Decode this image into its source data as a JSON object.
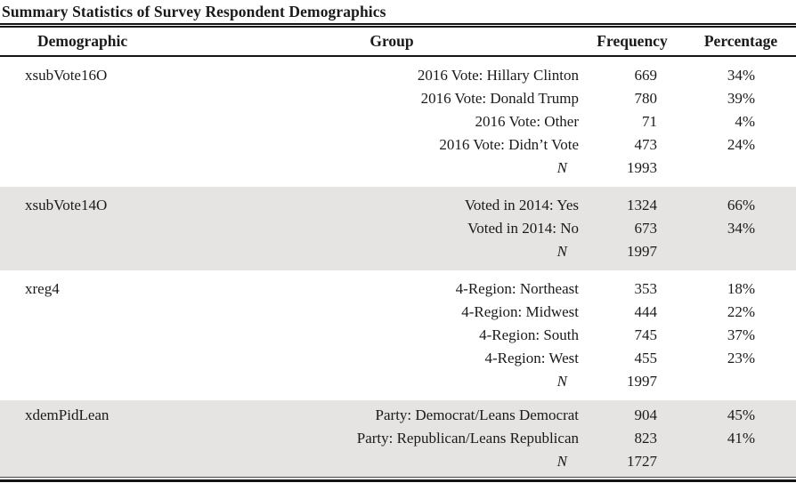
{
  "title": "Summary Statistics of Survey Respondent Demographics",
  "table": {
    "headers": {
      "demographic": "Demographic",
      "group": "Group",
      "frequency": "Frequency",
      "percentage": "Percentage"
    },
    "colors": {
      "shaded_row_background": "#e5e4e2",
      "rule_color": "#141414"
    },
    "sections": [
      {
        "demographic": "xsubVote16O",
        "shaded": false,
        "rows": [
          {
            "group": "2016 Vote: Hillary Clinton",
            "frequency": "669",
            "percentage": "34%"
          },
          {
            "group": "2016 Vote: Donald Trump",
            "frequency": "780",
            "percentage": "39%"
          },
          {
            "group": "2016 Vote: Other",
            "frequency": "71",
            "percentage": "4%"
          },
          {
            "group": "2016 Vote: Didn’t Vote",
            "frequency": "473",
            "percentage": "24%"
          },
          {
            "group": "N",
            "frequency": "1993",
            "percentage": ""
          }
        ]
      },
      {
        "demographic": "xsubVote14O",
        "shaded": true,
        "rows": [
          {
            "group": "Voted in 2014: Yes",
            "frequency": "1324",
            "percentage": "66%"
          },
          {
            "group": "Voted in 2014: No",
            "frequency": "673",
            "percentage": "34%"
          },
          {
            "group": "N",
            "frequency": "1997",
            "percentage": ""
          }
        ]
      },
      {
        "demographic": "xreg4",
        "shaded": false,
        "rows": [
          {
            "group": "4-Region: Northeast",
            "frequency": "353",
            "percentage": "18%"
          },
          {
            "group": "4-Region: Midwest",
            "frequency": "444",
            "percentage": "22%"
          },
          {
            "group": "4-Region: South",
            "frequency": "745",
            "percentage": "37%"
          },
          {
            "group": "4-Region: West",
            "frequency": "455",
            "percentage": "23%"
          },
          {
            "group": "N",
            "frequency": "1997",
            "percentage": ""
          }
        ]
      },
      {
        "demographic": "xdemPidLean",
        "shaded": true,
        "rows": [
          {
            "group": "Party: Democrat/Leans Democrat",
            "frequency": "904",
            "percentage": "45%"
          },
          {
            "group": "Party: Republican/Leans Republican",
            "frequency": "823",
            "percentage": "41%"
          },
          {
            "group": "N",
            "frequency": "1727",
            "percentage": ""
          }
        ]
      }
    ]
  }
}
